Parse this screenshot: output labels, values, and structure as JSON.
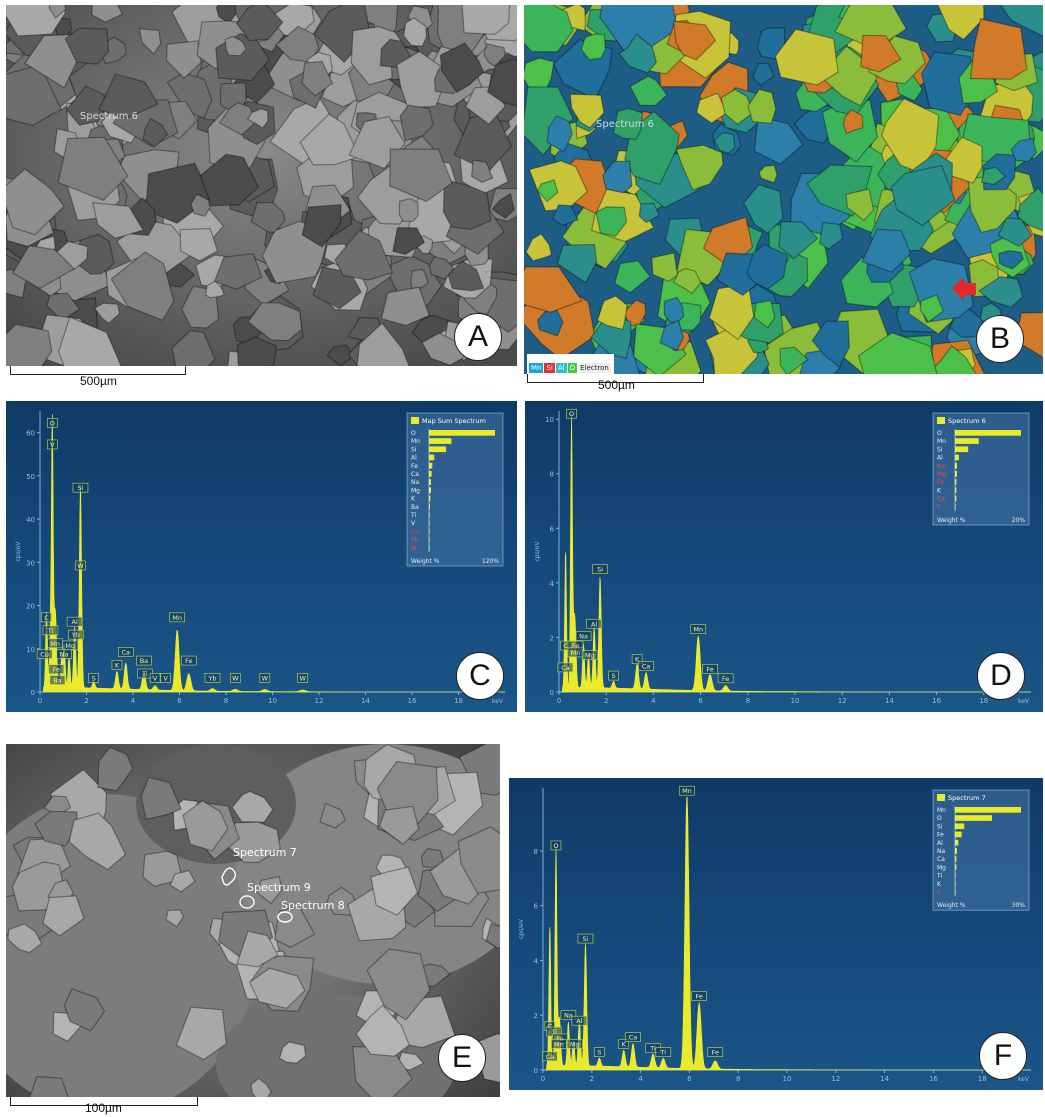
{
  "panels": {
    "A": {
      "letter": "A",
      "scale": "500µm",
      "overlay": "Spectrum 6"
    },
    "B": {
      "letter": "B",
      "scale": "500µm",
      "overlay": "Spectrum 6",
      "legend": [
        {
          "label": "Mn",
          "color": "#1fa0e0"
        },
        {
          "label": "Si",
          "color": "#e03030"
        },
        {
          "label": "Al",
          "color": "#29c4d0"
        },
        {
          "label": "O",
          "color": "#3fcf3f"
        },
        {
          "label": "Electron",
          "color": "#eeeeee"
        }
      ]
    },
    "E": {
      "letter": "E",
      "scale": "100µm",
      "spectra": [
        {
          "label": "Spectrum 7"
        },
        {
          "label": "Spectrum 9"
        },
        {
          "label": "Spectrum 8"
        }
      ]
    }
  },
  "chart_data": [
    {
      "panel": "C",
      "type": "line",
      "xlabel": "keV",
      "ylabel": "cps/eV",
      "xlim": [
        0,
        20
      ],
      "ylim": [
        0,
        65
      ],
      "xticks": [
        0,
        2,
        4,
        6,
        8,
        10,
        12,
        14,
        16,
        18
      ],
      "yticks": [
        0,
        10,
        20,
        30,
        40,
        50,
        60
      ],
      "peaks": [
        {
          "x": 0.28,
          "y": 18
        },
        {
          "x": 0.45,
          "y": 11
        },
        {
          "x": 0.53,
          "y": 62
        },
        {
          "x": 0.64,
          "y": 14
        },
        {
          "x": 0.7,
          "y": 9
        },
        {
          "x": 0.93,
          "y": 7
        },
        {
          "x": 1.04,
          "y": 10
        },
        {
          "x": 1.25,
          "y": 7
        },
        {
          "x": 1.49,
          "y": 14
        },
        {
          "x": 1.74,
          "y": 47
        },
        {
          "x": 2.31,
          "y": 1.5
        },
        {
          "x": 3.31,
          "y": 4
        },
        {
          "x": 3.69,
          "y": 6
        },
        {
          "x": 4.47,
          "y": 4
        },
        {
          "x": 4.95,
          "y": 1
        },
        {
          "x": 5.9,
          "y": 14
        },
        {
          "x": 6.4,
          "y": 4
        },
        {
          "x": 7.42,
          "y": 0.6
        },
        {
          "x": 8.4,
          "y": 0.5
        },
        {
          "x": 9.67,
          "y": 0.5
        },
        {
          "x": 11.3,
          "y": 0.4
        }
      ],
      "labels": [
        {
          "text": "O",
          "x": 0.53,
          "y": 61
        },
        {
          "text": "V",
          "x": 0.53,
          "y": 56
        },
        {
          "text": "Si",
          "x": 1.74,
          "y": 46
        },
        {
          "text": "W",
          "x": 1.74,
          "y": 28
        },
        {
          "text": "Al",
          "x": 1.49,
          "y": 15
        },
        {
          "text": "Yb",
          "x": 1.54,
          "y": 12
        },
        {
          "text": "C",
          "x": 0.28,
          "y": 16
        },
        {
          "text": "Ti",
          "x": 0.45,
          "y": 13
        },
        {
          "text": "Mn",
          "x": 0.65,
          "y": 10
        },
        {
          "text": "Mg",
          "x": 1.3,
          "y": 9.5
        },
        {
          "text": "Cu",
          "x": 0.2,
          "y": 7.5
        },
        {
          "text": "Na",
          "x": 1.04,
          "y": 7.5
        },
        {
          "text": "Fe",
          "x": 0.7,
          "y": 4
        },
        {
          "text": "Ba",
          "x": 0.75,
          "y": 1.5
        },
        {
          "text": "S",
          "x": 2.31,
          "y": 2
        },
        {
          "text": "K",
          "x": 3.31,
          "y": 5
        },
        {
          "text": "Ca",
          "x": 3.69,
          "y": 8
        },
        {
          "text": "Ba",
          "x": 4.47,
          "y": 6
        },
        {
          "text": "Ti",
          "x": 4.51,
          "y": 3
        },
        {
          "text": "V",
          "x": 4.95,
          "y": 2
        },
        {
          "text": "V",
          "x": 5.4,
          "y": 2
        },
        {
          "text": "Mn",
          "x": 5.9,
          "y": 16
        },
        {
          "text": "Fe",
          "x": 6.4,
          "y": 6
        },
        {
          "text": "Yb",
          "x": 7.42,
          "y": 2
        },
        {
          "text": "W",
          "x": 8.4,
          "y": 2
        },
        {
          "text": "W",
          "x": 9.67,
          "y": 2
        },
        {
          "text": "W",
          "x": 11.3,
          "y": 2
        }
      ],
      "inset": {
        "title": "Map Sum Spectrum",
        "footer_left": "Weight %",
        "footer_right": "120%",
        "rows": [
          {
            "el": "O",
            "v": 100
          },
          {
            "el": "Mn",
            "v": 34
          },
          {
            "el": "Si",
            "v": 26
          },
          {
            "el": "Al",
            "v": 8
          },
          {
            "el": "Fe",
            "v": 5
          },
          {
            "el": "Ca",
            "v": 4
          },
          {
            "el": "Na",
            "v": 3
          },
          {
            "el": "Mg",
            "v": 3
          },
          {
            "el": "K",
            "v": 2
          },
          {
            "el": "Ba",
            "v": 1.5
          },
          {
            "el": "Ti",
            "v": 1
          },
          {
            "el": "V",
            "v": 0.5
          },
          {
            "el": "Cu",
            "v": 0.2,
            "red": true
          },
          {
            "el": "Yb",
            "v": 0.2,
            "red": true
          },
          {
            "el": "W",
            "v": 0.2,
            "red": true
          }
        ]
      }
    },
    {
      "panel": "D",
      "type": "line",
      "xlabel": "keV",
      "ylabel": "cps/eV",
      "xlim": [
        0,
        20
      ],
      "ylim": [
        0,
        10.3
      ],
      "xticks": [
        0,
        2,
        4,
        6,
        8,
        10,
        12,
        14,
        16,
        18
      ],
      "yticks": [
        0,
        2,
        4,
        6,
        8,
        10
      ],
      "peaks": [
        {
          "x": 0.28,
          "y": 5.1
        },
        {
          "x": 0.53,
          "y": 10
        },
        {
          "x": 0.64,
          "y": 2
        },
        {
          "x": 0.7,
          "y": 1.5
        },
        {
          "x": 1.04,
          "y": 1.6
        },
        {
          "x": 1.25,
          "y": 1.2
        },
        {
          "x": 1.49,
          "y": 2.2
        },
        {
          "x": 1.74,
          "y": 4.1
        },
        {
          "x": 2.31,
          "y": 0.25
        },
        {
          "x": 3.31,
          "y": 0.9
        },
        {
          "x": 3.69,
          "y": 0.6
        },
        {
          "x": 5.9,
          "y": 2
        },
        {
          "x": 6.4,
          "y": 0.6
        },
        {
          "x": 7.06,
          "y": 0.2
        }
      ],
      "labels": [
        {
          "text": "O",
          "x": 0.53,
          "y": 10
        },
        {
          "text": "Si",
          "x": 1.74,
          "y": 4.3
        },
        {
          "text": "Al",
          "x": 1.49,
          "y": 2.3
        },
        {
          "text": "Na",
          "x": 1.04,
          "y": 1.85
        },
        {
          "text": "C",
          "x": 0.28,
          "y": 1.5
        },
        {
          "text": "Fe",
          "x": 0.7,
          "y": 1.5
        },
        {
          "text": "Mn",
          "x": 0.7,
          "y": 1.25
        },
        {
          "text": "Mg",
          "x": 1.3,
          "y": 1.15
        },
        {
          "text": "Ca",
          "x": 0.27,
          "y": 0.7
        },
        {
          "text": "S",
          "x": 2.31,
          "y": 0.4
        },
        {
          "text": "K",
          "x": 3.31,
          "y": 1
        },
        {
          "text": "Ca",
          "x": 3.69,
          "y": 0.75
        },
        {
          "text": "Mn",
          "x": 5.9,
          "y": 2.1
        },
        {
          "text": "Fe",
          "x": 6.4,
          "y": 0.65
        },
        {
          "text": "Fe",
          "x": 7.06,
          "y": 0.3
        }
      ],
      "inset": {
        "title": "Spectrum 6",
        "footer_left": "Weight %",
        "footer_right": "20%",
        "rows": [
          {
            "el": "O",
            "v": 100
          },
          {
            "el": "Mn",
            "v": 36
          },
          {
            "el": "Si",
            "v": 20
          },
          {
            "el": "Al",
            "v": 6
          },
          {
            "el": "Na",
            "v": 3,
            "red": true
          },
          {
            "el": "Mg",
            "v": 3,
            "red": true
          },
          {
            "el": "Fe",
            "v": 2,
            "red": true
          },
          {
            "el": "K",
            "v": 2
          },
          {
            "el": "Ca",
            "v": 2,
            "red": true
          },
          {
            "el": "C",
            "v": 1,
            "red": true
          }
        ]
      }
    },
    {
      "panel": "F",
      "type": "line",
      "xlabel": "keV",
      "ylabel": "cps/eV",
      "xlim": [
        0,
        20
      ],
      "ylim": [
        0,
        10.3
      ],
      "xticks": [
        0,
        2,
        4,
        6,
        8,
        10,
        12,
        14,
        16,
        18
      ],
      "yticks": [
        0,
        2,
        4,
        6,
        8
      ],
      "peaks": [
        {
          "x": 0.28,
          "y": 5.2
        },
        {
          "x": 0.53,
          "y": 8
        },
        {
          "x": 0.64,
          "y": 1.2
        },
        {
          "x": 0.7,
          "y": 1.1
        },
        {
          "x": 1.04,
          "y": 1.6
        },
        {
          "x": 1.25,
          "y": 0.9
        },
        {
          "x": 1.49,
          "y": 1.6
        },
        {
          "x": 1.74,
          "y": 4.5
        },
        {
          "x": 2.31,
          "y": 0.3
        },
        {
          "x": 3.31,
          "y": 0.6
        },
        {
          "x": 3.69,
          "y": 0.85
        },
        {
          "x": 4.51,
          "y": 0.5
        },
        {
          "x": 4.93,
          "y": 0.35
        },
        {
          "x": 5.9,
          "y": 10
        },
        {
          "x": 6.4,
          "y": 2.4
        },
        {
          "x": 7.06,
          "y": 0.3
        }
      ],
      "labels": [
        {
          "text": "O",
          "x": 0.53,
          "y": 8
        },
        {
          "text": "Si",
          "x": 1.74,
          "y": 4.6
        },
        {
          "text": "Na",
          "x": 1.04,
          "y": 1.8
        },
        {
          "text": "Al",
          "x": 1.49,
          "y": 1.6
        },
        {
          "text": "C",
          "x": 0.28,
          "y": 1.4
        },
        {
          "text": "Ti",
          "x": 0.45,
          "y": 1.2
        },
        {
          "text": "Fe",
          "x": 0.7,
          "y": 0.95
        },
        {
          "text": "Mn",
          "x": 0.65,
          "y": 0.75
        },
        {
          "text": "Mg",
          "x": 1.3,
          "y": 0.75
        },
        {
          "text": "Ca",
          "x": 0.28,
          "y": 0.3
        },
        {
          "text": "S",
          "x": 2.31,
          "y": 0.45
        },
        {
          "text": "K",
          "x": 3.31,
          "y": 0.75
        },
        {
          "text": "Ca",
          "x": 3.69,
          "y": 1
        },
        {
          "text": "Ti",
          "x": 4.51,
          "y": 0.6
        },
        {
          "text": "Ti",
          "x": 4.93,
          "y": 0.45
        },
        {
          "text": "Mn",
          "x": 5.9,
          "y": 10
        },
        {
          "text": "Fe",
          "x": 6.4,
          "y": 2.5
        },
        {
          "text": "Fe",
          "x": 7.06,
          "y": 0.45
        }
      ],
      "inset": {
        "title": "Spectrum 7",
        "footer_left": "Weight %",
        "footer_right": "30%",
        "rows": [
          {
            "el": "Mn",
            "v": 100
          },
          {
            "el": "O",
            "v": 56
          },
          {
            "el": "Si",
            "v": 14
          },
          {
            "el": "Fe",
            "v": 10
          },
          {
            "el": "Al",
            "v": 5
          },
          {
            "el": "Na",
            "v": 3
          },
          {
            "el": "Ca",
            "v": 2
          },
          {
            "el": "Mg",
            "v": 2
          },
          {
            "el": "Ti",
            "v": 1
          },
          {
            "el": "K",
            "v": 1
          },
          {
            "el": "C",
            "v": 0.3,
            "red": true
          }
        ]
      }
    }
  ]
}
